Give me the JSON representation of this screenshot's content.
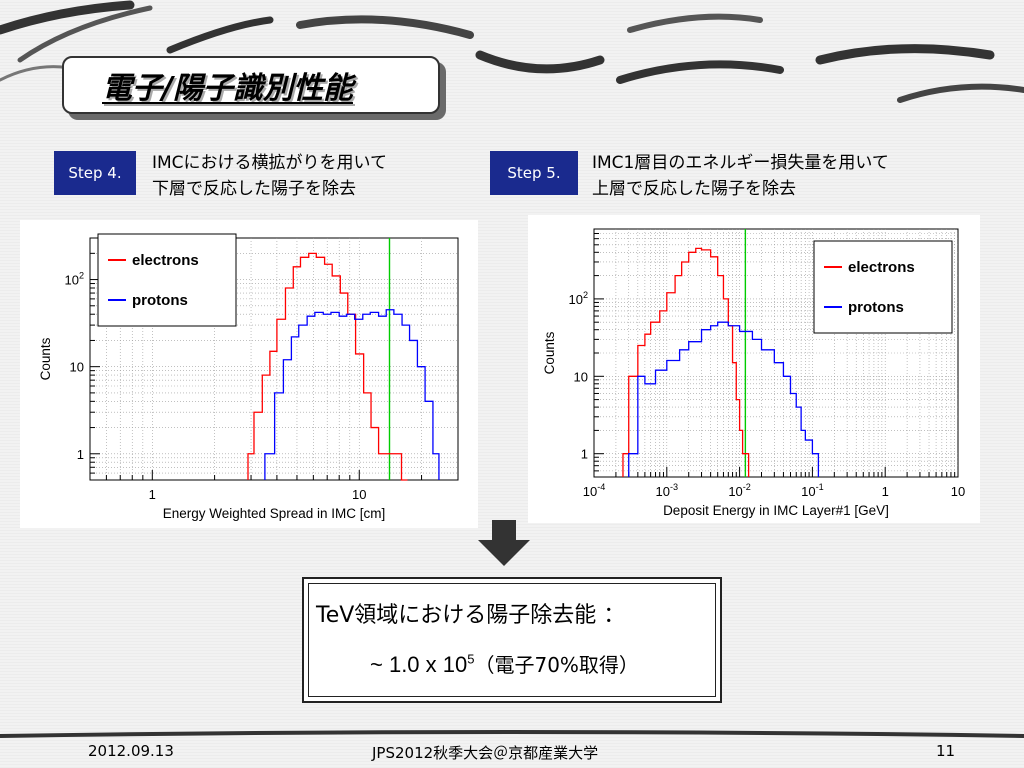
{
  "title": "電子/陽子識別性能",
  "steps": [
    {
      "badge": "Step 4.",
      "line1": "IMCにおける横拡がりを用いて",
      "line2": "下層で反応した陽子を除去"
    },
    {
      "badge": "Step 5.",
      "line1": "IMC1層目のエネルギー損失量を用いて",
      "line2": "上層で反応した陽子を除去"
    }
  ],
  "result": {
    "line1": "TeV領域における陽子除去能 ：",
    "prefix": "~ 1.0 x 10",
    "exponent": "5",
    "suffix": "（電子70%取得）"
  },
  "footer": {
    "date": "2012.09.13",
    "conference": "JPS2012秋季大会＠京都産業大学",
    "page": "11"
  },
  "colors": {
    "electrons": "#ff0000",
    "protons": "#0000ff",
    "cut_line": "#00cc00",
    "badge": "#1a2a8e"
  },
  "chart_data": [
    {
      "type": "line",
      "xlabel": "Energy Weighted Spread in IMC [cm]",
      "ylabel": "Counts",
      "x_scale": "log",
      "y_scale": "log",
      "xlim": [
        0.5,
        30
      ],
      "ylim": [
        0.5,
        300
      ],
      "x_ticks": [
        {
          "v": 1,
          "label": "1"
        },
        {
          "v": 10,
          "label": "10"
        }
      ],
      "y_ticks": [
        {
          "v": 1,
          "label": "1"
        },
        {
          "v": 10,
          "label": "10"
        },
        {
          "v": 100,
          "label": "10",
          "sup": "2"
        }
      ],
      "grid": true,
      "legend": "top-left",
      "cut": 14,
      "series": [
        {
          "name": "electrons",
          "color": "#ff0000",
          "x": [
            2.9,
            3.1,
            3.4,
            3.7,
            4.0,
            4.4,
            4.8,
            5.2,
            5.7,
            6.2,
            6.8,
            7.4,
            8.1,
            8.8,
            9.6,
            10.5,
            11.4,
            12.4,
            13.5,
            14.7,
            16
          ],
          "y": [
            1,
            3,
            8,
            15,
            35,
            80,
            140,
            180,
            200,
            180,
            150,
            110,
            70,
            40,
            14,
            5,
            2,
            1,
            1,
            1,
            0.5
          ]
        },
        {
          "name": "protons",
          "color": "#0000ff",
          "x": [
            3.5,
            3.9,
            4.3,
            4.7,
            5.1,
            5.6,
            6.1,
            6.7,
            7.3,
            8.0,
            8.7,
            9.5,
            10.4,
            11.3,
            12.4,
            13.5,
            14.7,
            16.1,
            17.5,
            19.1,
            20.8,
            22.7
          ],
          "y": [
            1,
            5,
            12,
            22,
            30,
            38,
            42,
            40,
            42,
            38,
            40,
            35,
            40,
            42,
            38,
            45,
            40,
            30,
            20,
            10,
            4,
            1
          ]
        }
      ]
    },
    {
      "type": "line",
      "xlabel": "Deposit Energy in IMC Layer#1 [GeV]",
      "ylabel": "Counts",
      "x_scale": "log",
      "y_scale": "log",
      "xlim": [
        0.0001,
        10
      ],
      "ylim": [
        0.5,
        800
      ],
      "x_ticks": [
        {
          "v": 0.0001,
          "label": "10",
          "sup": "-4"
        },
        {
          "v": 0.001,
          "label": "10",
          "sup": "-3"
        },
        {
          "v": 0.01,
          "label": "10",
          "sup": "-2"
        },
        {
          "v": 0.1,
          "label": "10",
          "sup": "-1"
        },
        {
          "v": 1,
          "label": "1"
        },
        {
          "v": 10,
          "label": "10"
        }
      ],
      "y_ticks": [
        {
          "v": 1,
          "label": "1"
        },
        {
          "v": 10,
          "label": "10"
        },
        {
          "v": 100,
          "label": "10",
          "sup": "2"
        }
      ],
      "grid": true,
      "legend": "top-right",
      "cut": 0.012,
      "series": [
        {
          "name": "electrons",
          "color": "#ff0000",
          "x": [
            0.00025,
            0.0003,
            0.0004,
            0.0005,
            0.0006,
            0.0008,
            0.001,
            0.0013,
            0.0016,
            0.002,
            0.0025,
            0.003,
            0.004,
            0.005,
            0.006,
            0.007,
            0.008,
            0.009,
            0.01,
            0.011
          ],
          "y": [
            1,
            10,
            25,
            35,
            50,
            70,
            120,
            200,
            300,
            400,
            450,
            430,
            350,
            200,
            100,
            45,
            15,
            5,
            2,
            1
          ]
        },
        {
          "name": "protons",
          "color": "#0000ff",
          "x": [
            0.0003,
            0.0004,
            0.0005,
            0.0007,
            0.001,
            0.0015,
            0.002,
            0.003,
            0.004,
            0.005,
            0.007,
            0.01,
            0.015,
            0.02,
            0.03,
            0.04,
            0.05,
            0.06,
            0.07,
            0.08,
            0.1
          ],
          "y": [
            1,
            10,
            8,
            12,
            16,
            22,
            28,
            40,
            45,
            50,
            45,
            38,
            30,
            22,
            15,
            10,
            6,
            4,
            2,
            1.5,
            1
          ]
        }
      ]
    }
  ]
}
